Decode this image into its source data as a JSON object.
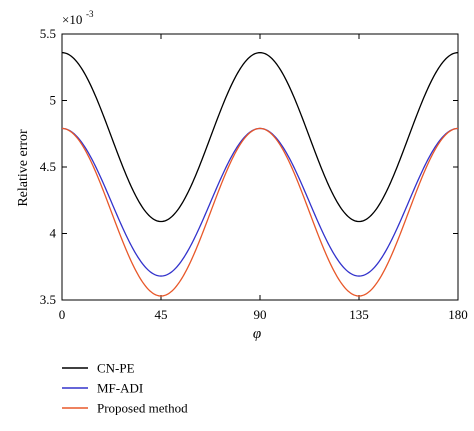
{
  "chart_data": {
    "type": "line",
    "xlabel": "φ",
    "ylabel": "Relative error",
    "y_multiplier": "×10",
    "y_multiplier_exponent": "-3",
    "xlim": [
      0,
      180
    ],
    "ylim": [
      3.5,
      5.5
    ],
    "x_ticks": [
      0,
      45,
      90,
      135,
      180
    ],
    "x_tick_labels": [
      "0",
      "45",
      "90",
      "135",
      "180"
    ],
    "y_ticks": [
      3.5,
      4,
      4.5,
      5,
      5.5
    ],
    "y_tick_labels": [
      "3.5",
      "4",
      "4.5",
      "5",
      "5.5"
    ],
    "grid": false,
    "legend_position": "bottom",
    "x": [
      0,
      45,
      90,
      135,
      180
    ],
    "series": [
      {
        "name": "CN-PE",
        "color": "#000000",
        "values": [
          5.36,
          4.09,
          5.36,
          4.09,
          5.36
        ]
      },
      {
        "name": "MF-ADI",
        "color": "#3333cc",
        "values": [
          4.79,
          3.68,
          4.79,
          3.68,
          4.79
        ]
      },
      {
        "name": "Proposed method",
        "color": "#e8582a",
        "values": [
          4.79,
          3.53,
          4.79,
          3.53,
          4.79
        ]
      }
    ]
  }
}
